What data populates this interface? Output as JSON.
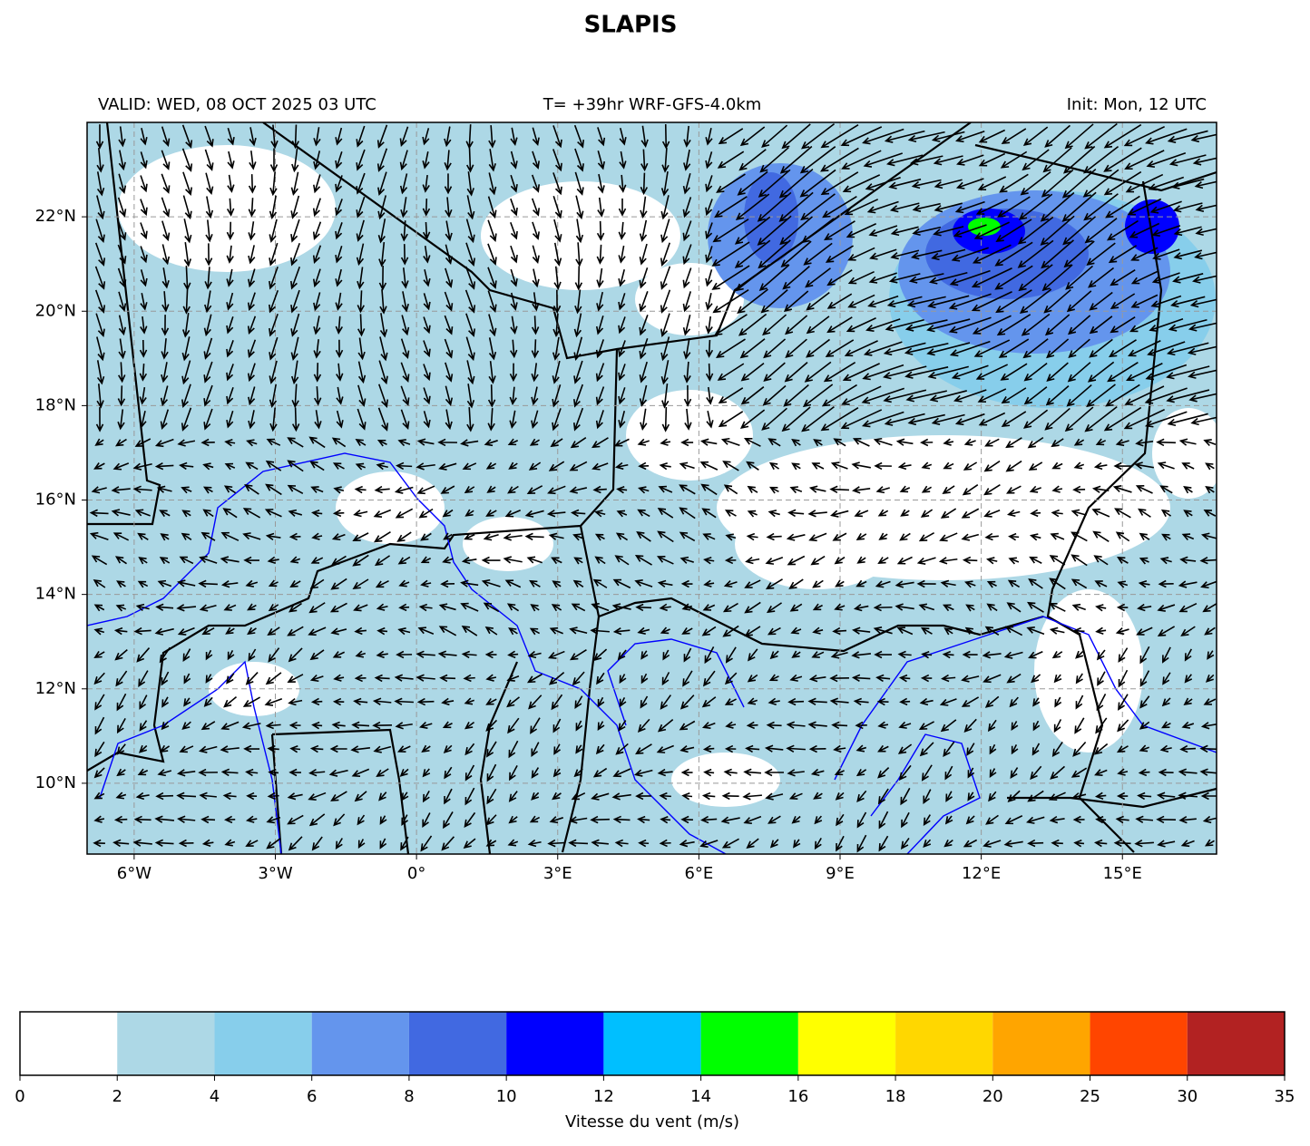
{
  "title": "SLAPIS",
  "header": {
    "valid": "VALID: WED, 08 OCT 2025 03 UTC",
    "run": "T= +39hr WRF-GFS-4.0km",
    "init": "Init: Mon, 12 UTC"
  },
  "map": {
    "lon_range": [
      -7,
      17
    ],
    "lat_range": [
      8.5,
      24
    ],
    "lon_ticks": [
      {
        "value": -6,
        "label": "6°W"
      },
      {
        "value": -3,
        "label": "3°W"
      },
      {
        "value": 0,
        "label": "0°"
      },
      {
        "value": 3,
        "label": "3°E"
      },
      {
        "value": 6,
        "label": "6°E"
      },
      {
        "value": 9,
        "label": "9°E"
      },
      {
        "value": 12,
        "label": "12°E"
      },
      {
        "value": 15,
        "label": "15°E"
      }
    ],
    "lat_ticks": [
      {
        "value": 10,
        "label": "10°N"
      },
      {
        "value": 12,
        "label": "12°N"
      },
      {
        "value": 14,
        "label": "14°N"
      },
      {
        "value": 16,
        "label": "16°N"
      },
      {
        "value": 18,
        "label": "18°N"
      },
      {
        "value": 20,
        "label": "20°N"
      },
      {
        "value": 22,
        "label": "22°N"
      }
    ],
    "grid": true
  },
  "colorbar": {
    "label": "Vitesse du vent (m/s)",
    "bounds": [
      0,
      2,
      4,
      6,
      8,
      10,
      12,
      14,
      16,
      18,
      20,
      25,
      30,
      35
    ],
    "colors": [
      "#ffffff",
      "#add8e6",
      "#87ceeb",
      "#6495ed",
      "#4169e1",
      "#0000ff",
      "#00bfff",
      "#00ff00",
      "#ffff00",
      "#ffd700",
      "#ffa500",
      "#ff4500",
      "#b22222"
    ]
  }
}
